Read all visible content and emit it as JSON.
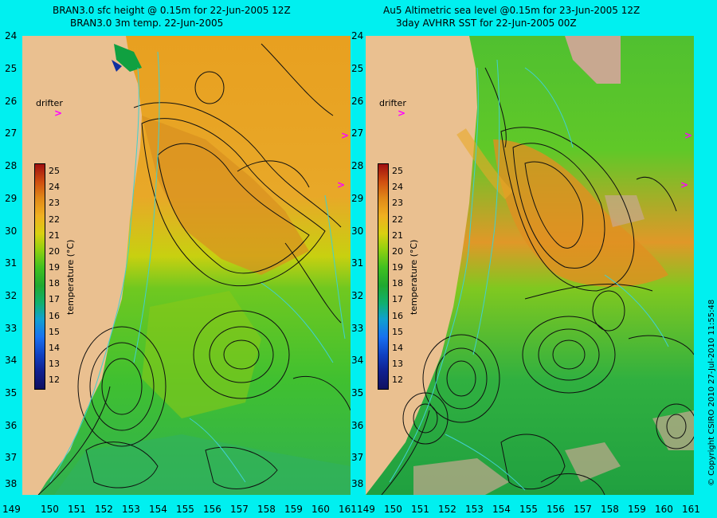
{
  "left_panel": {
    "title_line1": "BRAN3.0 sfc height @ 0.15m for 22-Jun-2005 12Z",
    "title_line2": "BRAN3.0 3m temp. 22-Jun-2005"
  },
  "right_panel": {
    "title_line1": "Au5 Altimetric sea level  @0.15m  for 23-Jun-2005 12Z",
    "title_line2": "3day AVHRR SST for 22-Jun-2005 00Z"
  },
  "lat_labels": [
    "24",
    "25",
    "26",
    "27",
    "28",
    "29",
    "30",
    "31",
    "32",
    "33",
    "34",
    "35",
    "36",
    "37",
    "38"
  ],
  "lon_labels": [
    "149",
    "150",
    "151",
    "152",
    "153",
    "154",
    "155",
    "156",
    "157",
    "158",
    "159",
    "160",
    "161"
  ],
  "colorbar": {
    "title": "temperature (°C)",
    "labels": [
      "25",
      "24",
      "23",
      "22",
      "21",
      "20",
      "19",
      "18",
      "17",
      "16",
      "15",
      "14",
      "13",
      "12"
    ],
    "colors": {
      "c25": "#a01010",
      "c24": "#d05010",
      "c23": "#e08818",
      "c22": "#f0b020",
      "c21": "#d8d010",
      "c20": "#90d010",
      "c19": "#40c020",
      "c18": "#20a830",
      "c17": "#10b070",
      "c16": "#10a0d0",
      "c15": "#1870f0",
      "c14": "#1040c0",
      "c13": "#102090",
      "c12": "#101060"
    }
  },
  "drifter_label": "drifter",
  "drifter_marker": ">",
  "copyright": "© Copyright CSIRO 2010    27-Jul-2010 11:55:48",
  "colors": {
    "background": "#00f0f0",
    "land": "#eac090",
    "contour": "#101010",
    "sst_contour": "#40d0d0",
    "drifter": "#ff00ff",
    "cloud": "#c8a890"
  }
}
